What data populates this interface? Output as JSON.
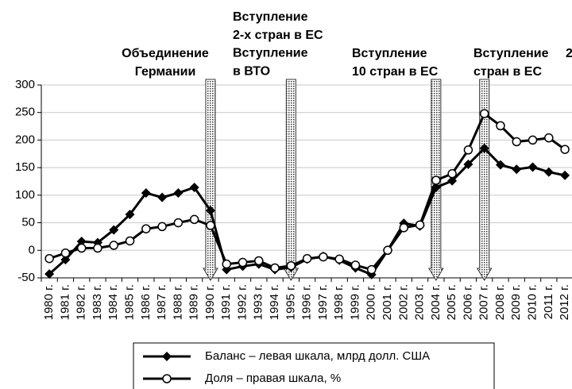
{
  "chart_data": {
    "type": "line",
    "categories": [
      "1980 г.",
      "1981 г.",
      "1982 г.",
      "1983 г.",
      "1984 г.",
      "1985 г.",
      "1986 г.",
      "1987 г.",
      "1988 г.",
      "1989 г.",
      "1990 г.",
      "1991 г.",
      "1992 г.",
      "1993 г.",
      "1994 г.",
      "1995 г.",
      "1996 г.",
      "1997 г.",
      "1998 г.",
      "1999 г.",
      "2000 г.",
      "2001 г.",
      "2002 г.",
      "2003 г.",
      "2004 г.",
      "2005 г.",
      "2006 г.",
      "2007 г.",
      "2008 г.",
      "2009 г.",
      "2010 г.",
      "2011 г.",
      "2012 г."
    ],
    "series": [
      {
        "name": "Баланс – левая шкала, млрд долл. США",
        "color": "#000000",
        "marker": "diamond",
        "values": [
          -43,
          -17,
          16,
          14,
          37,
          65,
          104,
          96,
          104,
          114,
          72,
          -35,
          -29,
          -25,
          -35,
          -31,
          -16,
          -11,
          -18,
          -32,
          -44,
          0,
          49,
          44,
          114,
          126,
          156,
          185,
          155,
          147,
          151,
          142,
          136
        ]
      },
      {
        "name": "Доля – правая шкала, %",
        "color": "#000000",
        "marker": "circle",
        "values": [
          -15,
          -5,
          4,
          4,
          9,
          17,
          39,
          43,
          50,
          56,
          45,
          -25,
          -22,
          -19,
          -32,
          -28,
          -15,
          -12,
          -16,
          -27,
          -35,
          0,
          41,
          46,
          127,
          139,
          182,
          248,
          226,
          197,
          200,
          204,
          183
        ]
      }
    ],
    "ylim": [
      -50,
      300
    ],
    "yticks": [
      -50,
      0,
      50,
      100,
      150,
      200,
      250,
      300
    ],
    "grid": true,
    "annotations": [
      {
        "lines": [
          "Объединение",
          "Германии"
        ]
      },
      {
        "lines": [
          "Вступление",
          "2-х стран в ЕС",
          "Вступление",
          "в ВТО"
        ]
      },
      {
        "lines": [
          "Вступление",
          "10 стран в ЕС"
        ]
      },
      {
        "lines": [
          "Вступление",
          "стран в ЕС"
        ]
      },
      {
        "lines": [
          "2"
        ]
      }
    ],
    "legend": "bottom"
  }
}
